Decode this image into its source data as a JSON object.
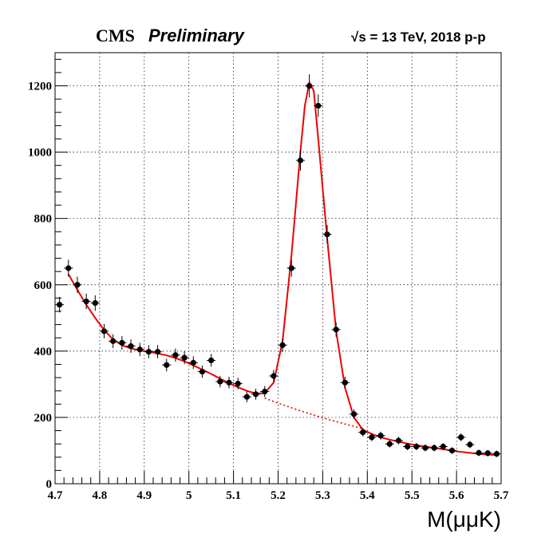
{
  "header": {
    "experiment": "CMS",
    "status": "Preliminary",
    "energy_sqrt": "√s",
    "energy_rest": " = 13 TeV, 2018 p-p"
  },
  "chart_data": {
    "type": "scatter",
    "xlabel": "M(μμK)",
    "ylabel": "",
    "xlim": [
      4.7,
      5.7
    ],
    "ylim": [
      0,
      1300
    ],
    "grid": true,
    "x_ticks": [
      4.7,
      4.8,
      4.9,
      5.0,
      5.1,
      5.2,
      5.3,
      5.4,
      5.5,
      5.6,
      5.7
    ],
    "x_tick_labels": [
      "4.7",
      "4.8",
      "4.9",
      "5",
      "5.1",
      "5.2",
      "5.3",
      "5.4",
      "5.5",
      "5.6",
      "5.7"
    ],
    "y_ticks": [
      0,
      200,
      400,
      600,
      800,
      1000,
      1200
    ],
    "y_tick_labels": [
      "0",
      "200",
      "400",
      "600",
      "800",
      "1000",
      "1200"
    ],
    "series": [
      {
        "kind": "data",
        "style": "points-with-errors",
        "color": "#000000",
        "x_bin_halfwidth": 0.01,
        "x": [
          4.71,
          4.73,
          4.75,
          4.77,
          4.79,
          4.81,
          4.83,
          4.85,
          4.87,
          4.89,
          4.91,
          4.93,
          4.95,
          4.97,
          4.99,
          5.01,
          5.03,
          5.05,
          5.07,
          5.09,
          5.11,
          5.13,
          5.15,
          5.17,
          5.19,
          5.21,
          5.23,
          5.25,
          5.27,
          5.29,
          5.31,
          5.33,
          5.35,
          5.37,
          5.39,
          5.41,
          5.43,
          5.45,
          5.47,
          5.49,
          5.51,
          5.53,
          5.55,
          5.57,
          5.59,
          5.61,
          5.63,
          5.65,
          5.67,
          5.69
        ],
        "y": [
          540,
          650,
          600,
          550,
          545,
          460,
          430,
          425,
          415,
          405,
          398,
          398,
          358,
          388,
          380,
          365,
          338,
          372,
          308,
          305,
          302,
          262,
          270,
          278,
          325,
          418,
          650,
          975,
          1200,
          1140,
          752,
          465,
          305,
          210,
          155,
          140,
          145,
          120,
          130,
          112,
          112,
          108,
          108,
          112,
          100,
          140,
          118,
          93,
          92,
          90
        ]
      },
      {
        "kind": "fit",
        "style": "line",
        "color": "#ee0000",
        "x": [
          4.73,
          4.75,
          4.77,
          4.79,
          4.81,
          4.83,
          4.85,
          4.87,
          4.89,
          4.91,
          4.93,
          4.95,
          4.97,
          4.99,
          5.01,
          5.03,
          5.05,
          5.07,
          5.09,
          5.11,
          5.13,
          5.15,
          5.17,
          5.19,
          5.21,
          5.23,
          5.25,
          5.26,
          5.27,
          5.28,
          5.29,
          5.31,
          5.33,
          5.35,
          5.37,
          5.39,
          5.41,
          5.43,
          5.45,
          5.47,
          5.49,
          5.51,
          5.53,
          5.55,
          5.57,
          5.59,
          5.61,
          5.63,
          5.65,
          5.67,
          5.69
        ],
        "y": [
          632,
          585,
          540,
          500,
          464,
          435,
          418,
          408,
          402,
          398,
          393,
          387,
          379,
          369,
          357,
          344,
          331,
          317,
          303,
          291,
          280,
          272,
          273,
          305,
          430,
          690,
          1000,
          1140,
          1210,
          1185,
          1040,
          740,
          460,
          290,
          200,
          163,
          150,
          140,
          133,
          127,
          121,
          116,
          112,
          108,
          104,
          100,
          96,
          93,
          90,
          88,
          86
        ]
      },
      {
        "kind": "background",
        "style": "dotted",
        "color": "#ee0000",
        "x": [
          5.17,
          5.2,
          5.25,
          5.3,
          5.35,
          5.39
        ],
        "y": [
          258,
          243,
          220,
          199,
          180,
          166
        ]
      }
    ]
  }
}
